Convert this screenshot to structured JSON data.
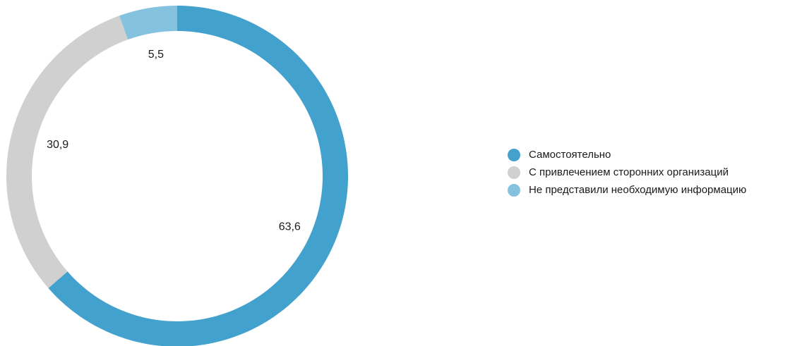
{
  "chart_data": {
    "type": "pie",
    "title": "",
    "series": [
      {
        "name": "",
        "categories": [
          "Самостоятельно",
          "С привлечением сторонних организаций",
          "Не представили необходимую информацию"
        ],
        "values": [
          63.6,
          30.9,
          5.5
        ],
        "value_labels": [
          "63,6",
          "30,9",
          "5,5"
        ]
      }
    ],
    "colors": [
      "#43a1cd",
      "#d0d0d0",
      "#85c2df"
    ],
    "donut": true,
    "legend_position": "right",
    "start_angle": "top",
    "direction": "clockwise"
  }
}
